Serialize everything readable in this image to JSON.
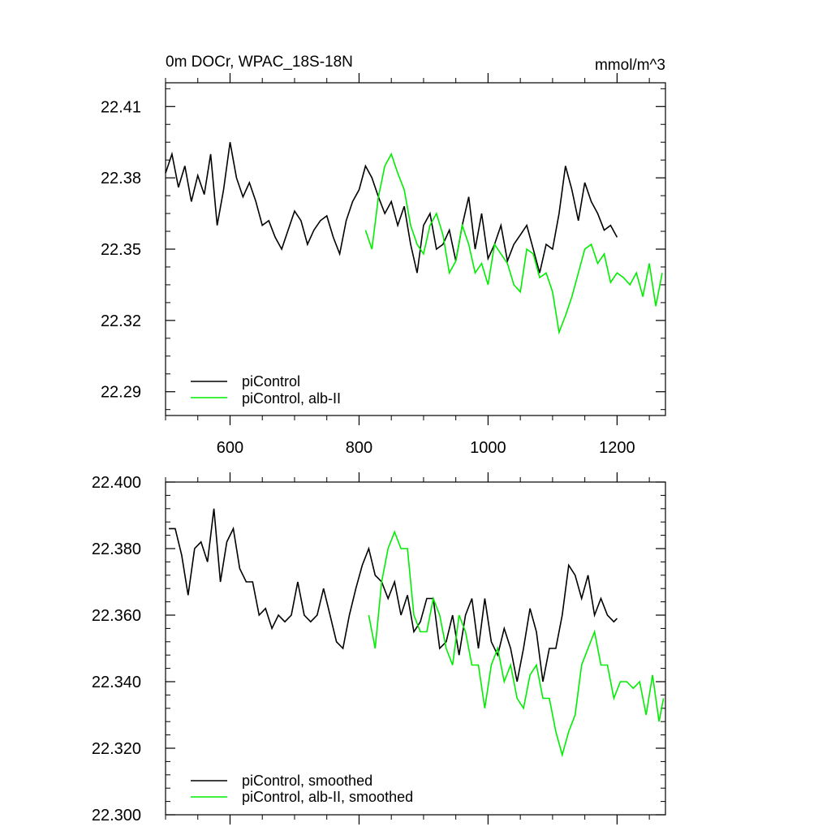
{
  "chart_data": [
    {
      "type": "line",
      "title": "0m DOCr, WPAC_18S-18N",
      "units": "mmol/m^3",
      "xlabel": "",
      "ylabel": "",
      "xlim": [
        500,
        1275
      ],
      "ylim": [
        22.28,
        22.42
      ],
      "x_ticks": [
        600,
        800,
        1000,
        1200
      ],
      "x_tick_labels": [
        "600",
        "800",
        "1000",
        "1200"
      ],
      "y_ticks": [
        22.29,
        22.32,
        22.35,
        22.38,
        22.41
      ],
      "y_tick_labels": [
        "22.29",
        "22.32",
        "22.35",
        "22.38",
        "22.41"
      ],
      "grid": false,
      "legend": "bottom-left",
      "series": [
        {
          "name": "piControl",
          "color": "#000000",
          "x": [
            500,
            510,
            520,
            530,
            540,
            550,
            560,
            570,
            580,
            590,
            600,
            610,
            620,
            630,
            640,
            650,
            660,
            670,
            680,
            690,
            700,
            710,
            720,
            730,
            740,
            750,
            760,
            770,
            780,
            790,
            800,
            810,
            820,
            830,
            840,
            850,
            860,
            870,
            880,
            890,
            900,
            910,
            920,
            930,
            940,
            950,
            960,
            970,
            980,
            990,
            1000,
            1010,
            1020,
            1030,
            1040,
            1050,
            1060,
            1070,
            1080,
            1090,
            1100,
            1110,
            1120,
            1130,
            1140,
            1150,
            1160,
            1170,
            1180,
            1190,
            1200
          ],
          "values": [
            22.382,
            22.39,
            22.376,
            22.385,
            22.37,
            22.381,
            22.373,
            22.39,
            22.36,
            22.375,
            22.395,
            22.38,
            22.372,
            22.378,
            22.37,
            22.36,
            22.362,
            22.355,
            22.35,
            22.358,
            22.366,
            22.362,
            22.352,
            22.358,
            22.362,
            22.364,
            22.355,
            22.348,
            22.362,
            22.37,
            22.375,
            22.385,
            22.38,
            22.372,
            22.365,
            22.37,
            22.36,
            22.368,
            22.352,
            22.34,
            22.36,
            22.365,
            22.35,
            22.352,
            22.358,
            22.345,
            22.36,
            22.372,
            22.35,
            22.365,
            22.346,
            22.352,
            22.36,
            22.345,
            22.352,
            22.356,
            22.36,
            22.35,
            22.34,
            22.352,
            22.35,
            22.365,
            22.385,
            22.375,
            22.362,
            22.378,
            22.37,
            22.365,
            22.358,
            22.36,
            22.355
          ]
        },
        {
          "name": "piControl, alb-II",
          "color": "#00ee00",
          "x": [
            810,
            820,
            830,
            840,
            850,
            860,
            870,
            880,
            890,
            900,
            910,
            920,
            930,
            940,
            950,
            960,
            970,
            980,
            990,
            1000,
            1010,
            1020,
            1030,
            1040,
            1050,
            1060,
            1070,
            1080,
            1090,
            1100,
            1110,
            1120,
            1130,
            1140,
            1150,
            1160,
            1170,
            1180,
            1190,
            1200,
            1210,
            1220,
            1230,
            1240,
            1250,
            1260,
            1270
          ],
          "values": [
            22.358,
            22.35,
            22.372,
            22.385,
            22.39,
            22.382,
            22.375,
            22.36,
            22.352,
            22.348,
            22.36,
            22.365,
            22.356,
            22.34,
            22.345,
            22.36,
            22.352,
            22.34,
            22.344,
            22.335,
            22.352,
            22.348,
            22.344,
            22.335,
            22.332,
            22.35,
            22.348,
            22.338,
            22.34,
            22.332,
            22.315,
            22.322,
            22.33,
            22.34,
            22.35,
            22.352,
            22.344,
            22.348,
            22.336,
            22.34,
            22.338,
            22.335,
            22.34,
            22.33,
            22.344,
            22.326,
            22.34
          ]
        }
      ]
    },
    {
      "type": "line",
      "title": "",
      "xlabel": "",
      "ylabel": "",
      "xlim": [
        500,
        1275
      ],
      "ylim": [
        22.3,
        22.4
      ],
      "x_ticks": [
        600,
        800,
        1000,
        1200
      ],
      "x_tick_labels": [],
      "y_ticks": [
        22.3,
        22.32,
        22.34,
        22.36,
        22.38,
        22.4
      ],
      "y_tick_labels": [
        "22.300",
        "22.320",
        "22.340",
        "22.360",
        "22.380",
        "22.400"
      ],
      "grid": false,
      "legend": "bottom-left",
      "series": [
        {
          "name": "piControl, smoothed",
          "color": "#000000",
          "x": [
            505,
            515,
            525,
            535,
            545,
            555,
            565,
            575,
            585,
            595,
            605,
            615,
            625,
            635,
            645,
            655,
            665,
            675,
            685,
            695,
            705,
            715,
            725,
            735,
            745,
            755,
            765,
            775,
            785,
            795,
            805,
            815,
            825,
            835,
            845,
            855,
            865,
            875,
            885,
            895,
            905,
            915,
            925,
            935,
            945,
            955,
            965,
            975,
            985,
            995,
            1005,
            1015,
            1025,
            1035,
            1045,
            1055,
            1065,
            1075,
            1085,
            1095,
            1105,
            1115,
            1125,
            1135,
            1145,
            1155,
            1165,
            1175,
            1185,
            1195,
            1200
          ],
          "values": [
            22.386,
            22.386,
            22.378,
            22.366,
            22.38,
            22.382,
            22.376,
            22.392,
            22.37,
            22.382,
            22.386,
            22.374,
            22.37,
            22.37,
            22.36,
            22.362,
            22.356,
            22.36,
            22.358,
            22.36,
            22.37,
            22.36,
            22.358,
            22.36,
            22.368,
            22.36,
            22.352,
            22.35,
            22.36,
            22.368,
            22.375,
            22.38,
            22.372,
            22.37,
            22.365,
            22.37,
            22.36,
            22.366,
            22.355,
            22.358,
            22.365,
            22.365,
            22.35,
            22.352,
            22.36,
            22.348,
            22.36,
            22.365,
            22.35,
            22.365,
            22.352,
            22.348,
            22.356,
            22.35,
            22.34,
            22.35,
            22.362,
            22.355,
            22.34,
            22.35,
            22.35,
            22.36,
            22.375,
            22.372,
            22.365,
            22.372,
            22.36,
            22.365,
            22.36,
            22.358,
            22.359
          ]
        },
        {
          "name": "piControl, alb-II, smoothed",
          "color": "#00ee00",
          "x": [
            815,
            825,
            835,
            845,
            855,
            865,
            875,
            885,
            895,
            905,
            915,
            925,
            935,
            945,
            955,
            965,
            975,
            985,
            995,
            1005,
            1015,
            1025,
            1035,
            1045,
            1055,
            1065,
            1075,
            1085,
            1095,
            1105,
            1115,
            1125,
            1135,
            1145,
            1155,
            1165,
            1175,
            1185,
            1195,
            1205,
            1215,
            1225,
            1235,
            1245,
            1255,
            1265,
            1272
          ],
          "values": [
            22.36,
            22.35,
            22.37,
            22.38,
            22.385,
            22.38,
            22.38,
            22.36,
            22.355,
            22.355,
            22.365,
            22.36,
            22.35,
            22.345,
            22.36,
            22.355,
            22.345,
            22.345,
            22.332,
            22.345,
            22.35,
            22.34,
            22.345,
            22.335,
            22.332,
            22.342,
            22.345,
            22.335,
            22.335,
            22.325,
            22.318,
            22.325,
            22.33,
            22.345,
            22.35,
            22.355,
            22.345,
            22.345,
            22.335,
            22.34,
            22.34,
            22.338,
            22.34,
            22.33,
            22.342,
            22.328,
            22.335
          ]
        }
      ]
    }
  ]
}
